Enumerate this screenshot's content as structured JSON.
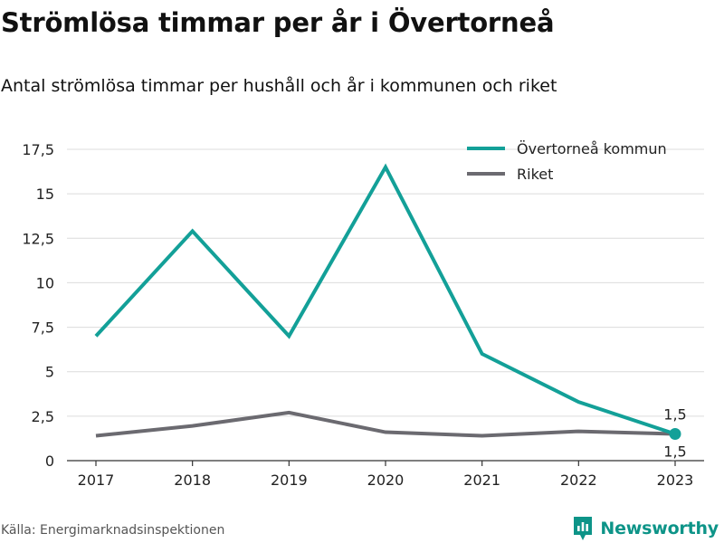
{
  "chart_data": {
    "type": "line",
    "title": "Strömlösa timmar per år i Övertorneå",
    "subtitle": "Antal strömlösa timmar per hushåll och år i kommunen och riket",
    "categories": [
      "2017",
      "2018",
      "2019",
      "2020",
      "2021",
      "2022",
      "2023"
    ],
    "series": [
      {
        "name": "Övertorneå kommun",
        "color": "#13a098",
        "values": [
          7.0,
          12.9,
          7.0,
          16.5,
          6.0,
          3.3,
          1.5
        ]
      },
      {
        "name": "Riket",
        "color": "#6b6a70",
        "values": [
          1.4,
          1.95,
          2.7,
          1.6,
          1.4,
          1.65,
          1.5
        ]
      }
    ],
    "ylim": [
      0,
      17.5
    ],
    "yticks": [
      "0",
      "2,5",
      "5",
      "7,5",
      "10",
      "12,5",
      "15",
      "17,5"
    ],
    "data_labels": [
      "1,5",
      "1,5"
    ],
    "grid": true,
    "legend": "top-right"
  },
  "source": "Källa: Energimarknadsinspektionen",
  "brand": {
    "name": "Newsworthy",
    "icon": "newsworthy-logo-icon",
    "color": "#0d9488"
  }
}
